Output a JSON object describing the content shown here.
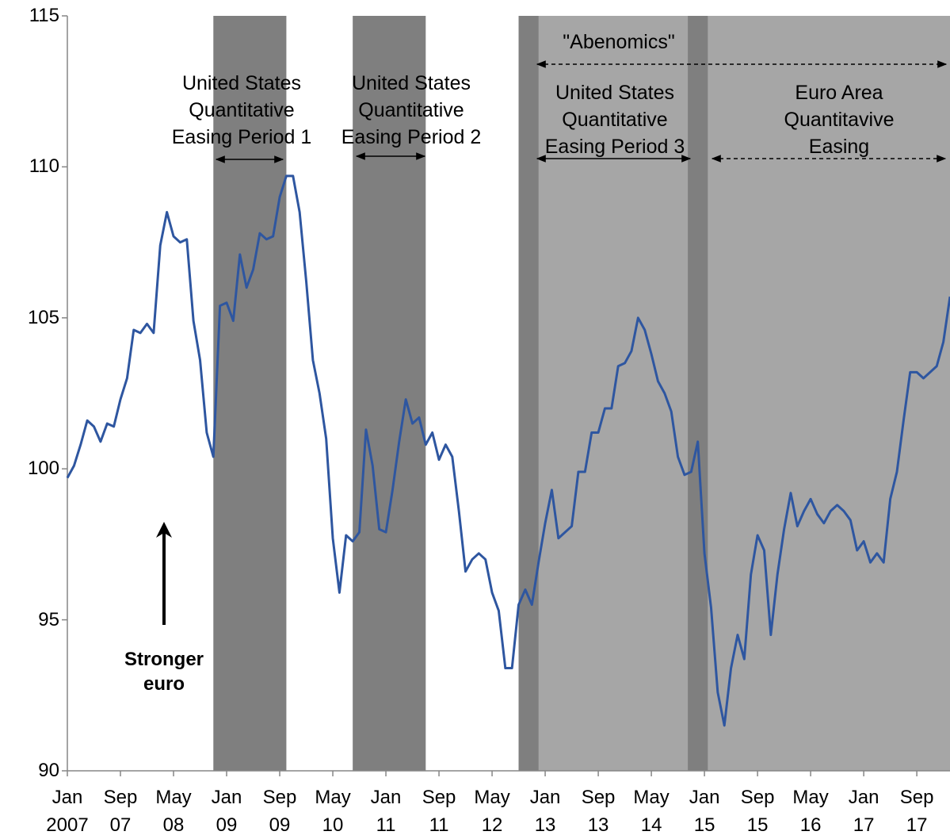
{
  "chart_data": {
    "type": "line",
    "categories": [
      "Jan\n2007",
      null,
      null,
      null,
      null,
      null,
      null,
      null,
      "Sep\n07",
      null,
      null,
      null,
      null,
      null,
      null,
      null,
      "May\n08",
      null,
      null,
      null,
      null,
      null,
      null,
      null,
      "Jan\n09",
      null,
      null,
      null,
      null,
      null,
      null,
      null,
      "Sep\n09",
      null,
      null,
      null,
      null,
      null,
      null,
      null,
      "May\n10",
      null,
      null,
      null,
      null,
      null,
      null,
      null,
      "Jan\n11",
      null,
      null,
      null,
      null,
      null,
      null,
      null,
      "Sep\n11",
      null,
      null,
      null,
      null,
      null,
      null,
      null,
      "May\n12",
      null,
      null,
      null,
      null,
      null,
      null,
      null,
      "Jan\n13",
      null,
      null,
      null,
      null,
      null,
      null,
      null,
      "Sep\n13",
      null,
      null,
      null,
      null,
      null,
      null,
      null,
      "May\n14",
      null,
      null,
      null,
      null,
      null,
      null,
      null,
      "Jan\n15",
      null,
      null,
      null,
      null,
      null,
      null,
      null,
      "Sep\n15",
      null,
      null,
      null,
      null,
      null,
      null,
      null,
      "May\n16",
      null,
      null,
      null,
      null,
      null,
      null,
      null,
      "Jan\n17",
      null,
      null,
      null,
      null,
      null,
      null,
      null,
      "Sep\n17",
      null,
      null,
      null,
      null,
      null
    ],
    "values": [
      99.7,
      100.1,
      100.8,
      101.6,
      101.4,
      100.9,
      101.5,
      101.4,
      102.3,
      103.0,
      104.6,
      104.5,
      104.8,
      104.5,
      107.4,
      108.5,
      107.7,
      107.5,
      107.6,
      104.9,
      103.6,
      101.2,
      100.4,
      105.4,
      105.5,
      104.9,
      107.1,
      106.0,
      106.6,
      107.8,
      107.6,
      107.7,
      109.0,
      109.7,
      109.7,
      108.5,
      106.2,
      103.6,
      102.5,
      101.0,
      97.7,
      95.9,
      97.8,
      97.6,
      97.9,
      101.3,
      100.1,
      98.0,
      97.9,
      99.3,
      100.9,
      102.3,
      101.5,
      101.7,
      100.8,
      101.2,
      100.3,
      100.8,
      100.4,
      98.6,
      96.6,
      97.0,
      97.2,
      97.0,
      95.9,
      95.3,
      93.4,
      93.4,
      95.5,
      96.0,
      95.5,
      96.9,
      98.2,
      99.3,
      97.7,
      97.9,
      98.1,
      99.9,
      99.9,
      101.2,
      101.2,
      102.0,
      102.0,
      103.4,
      103.5,
      103.9,
      105.0,
      104.6,
      103.8,
      102.9,
      102.5,
      101.9,
      100.4,
      99.8,
      99.9,
      100.9,
      97.2,
      95.4,
      92.6,
      91.5,
      93.4,
      94.5,
      93.7,
      96.5,
      97.8,
      97.3,
      94.5,
      96.5,
      98.0,
      99.2,
      98.1,
      98.6,
      99.0,
      98.5,
      98.2,
      98.6,
      98.8,
      98.6,
      98.3,
      97.3,
      97.6,
      96.9,
      97.2,
      96.9,
      99.0,
      99.9,
      101.6,
      103.2,
      103.2,
      103.0,
      103.2,
      103.4,
      104.2,
      105.7
    ],
    "color": "#2e56a0",
    "xlim": [
      0,
      133
    ],
    "ylim": [
      90,
      115
    ],
    "yticks": [
      90,
      95,
      100,
      105,
      110,
      115
    ],
    "grid": false,
    "shaded_periods": [
      {
        "start": 68,
        "end": 133,
        "color": "#a6a6a6"
      },
      {
        "start": 22,
        "end": 33,
        "color": "#7f7f7f"
      },
      {
        "start": 43,
        "end": 54,
        "color": "#7f7f7f"
      },
      {
        "start": 68,
        "end": 71,
        "color": "#7f7f7f"
      },
      {
        "start": 93.5,
        "end": 96.5,
        "color": "#7f7f7f"
      }
    ],
    "annotations": [
      "United States\nQuantitative\nEasing Period 1",
      "United States\nQuantitative\nEasing Period 2",
      "\"Abenomics\"",
      "United States\nQuantitative\nEasing Period 3",
      "Euro Area\nQuantitavive\nEasing",
      "Stronger\neuro"
    ]
  }
}
